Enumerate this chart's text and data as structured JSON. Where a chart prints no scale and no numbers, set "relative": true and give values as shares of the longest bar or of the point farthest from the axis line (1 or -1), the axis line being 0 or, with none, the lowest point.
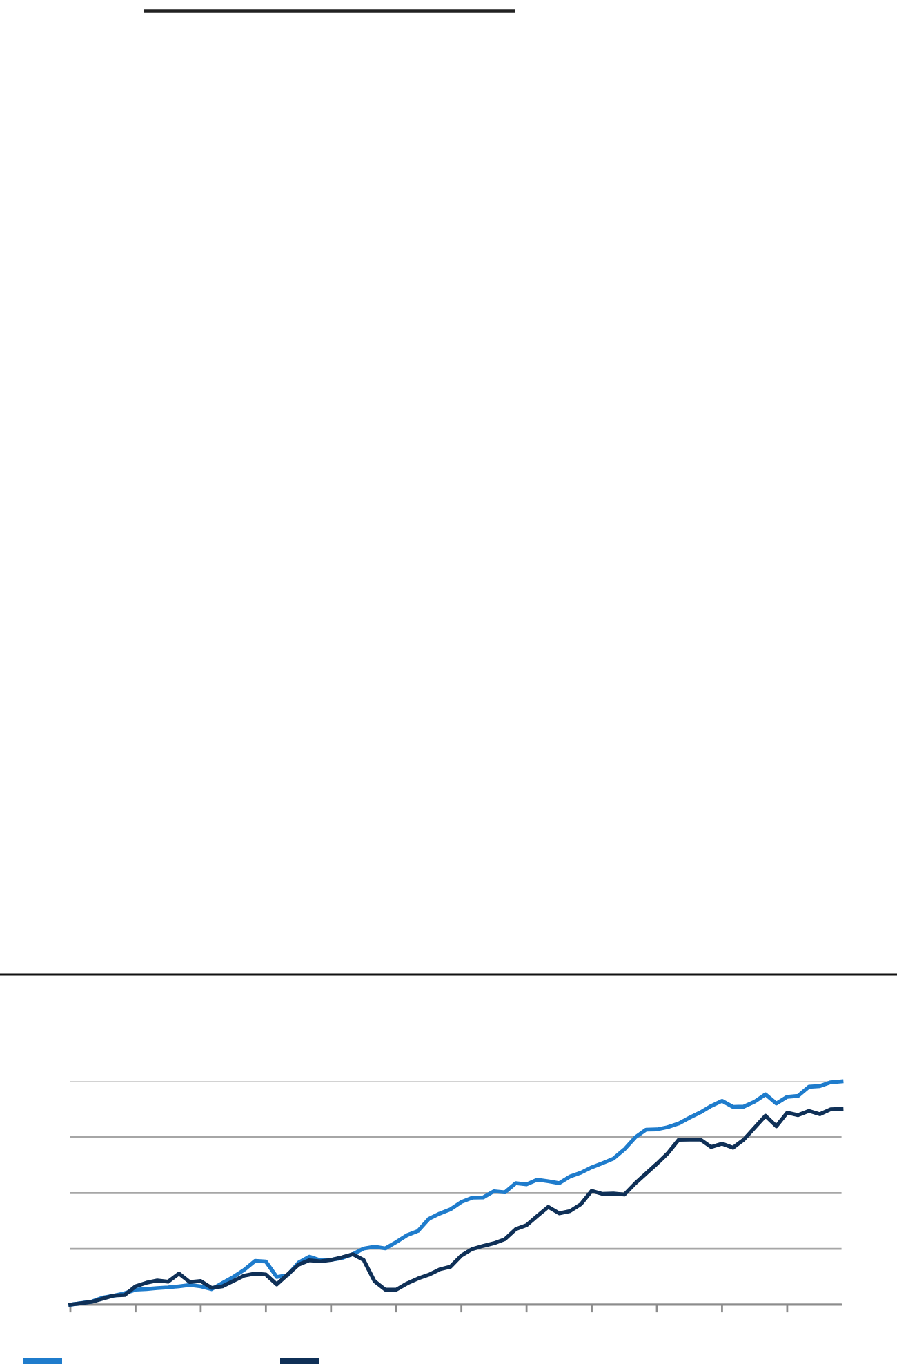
{
  "chart_data": {
    "type": "line",
    "relative": true,
    "grid": "y",
    "line_style": "solid",
    "categories": [
      null,
      null,
      null,
      null,
      null,
      null,
      null,
      null,
      null,
      null,
      null,
      null,
      null,
      null,
      null,
      null,
      null,
      null,
      null,
      null,
      null,
      null,
      null,
      null,
      null,
      null,
      null,
      null,
      null,
      null,
      null,
      null,
      null,
      null,
      null,
      null,
      null,
      null,
      null,
      null,
      null,
      null,
      null,
      null,
      null,
      null,
      null,
      null,
      null,
      null,
      null,
      null,
      null,
      null,
      null,
      null,
      null,
      null,
      null,
      null,
      null,
      null,
      null,
      null,
      null,
      null,
      null,
      null,
      null,
      null,
      null,
      null
    ],
    "series": [
      {
        "color": "#1f7ccc",
        "values": [
          0,
          0.007,
          0.014,
          0.032,
          0.04,
          0.051,
          0.067,
          0.07,
          0.074,
          0.077,
          0.082,
          0.088,
          0.082,
          0.069,
          0.097,
          0.124,
          0.156,
          0.196,
          0.193,
          0.124,
          0.132,
          0.188,
          0.215,
          0.199,
          0.201,
          0.208,
          0.226,
          0.251,
          0.26,
          0.252,
          0.28,
          0.311,
          0.33,
          0.384,
          0.408,
          0.427,
          0.46,
          0.479,
          0.48,
          0.508,
          0.503,
          0.544,
          0.539,
          0.56,
          0.553,
          0.544,
          0.574,
          0.591,
          0.615,
          0.634,
          0.654,
          0.695,
          0.749,
          0.784,
          0.785,
          0.795,
          0.811,
          0.837,
          0.861,
          0.89,
          0.913,
          0.886,
          0.887,
          0.909,
          0.942,
          0.901,
          0.931,
          0.935,
          0.976,
          0.979,
          0.996,
          1
        ]
      },
      {
        "color": "#0f3057",
        "values": [
          0,
          0.006,
          0.013,
          0.027,
          0.041,
          0.043,
          0.082,
          0.098,
          0.108,
          0.103,
          0.139,
          0.101,
          0.106,
          0.075,
          0.082,
          0.106,
          0.13,
          0.139,
          0.135,
          0.091,
          0.135,
          0.179,
          0.199,
          0.194,
          0.2,
          0.212,
          0.226,
          0.2,
          0.105,
          0.067,
          0.067,
          0.095,
          0.117,
          0.134,
          0.158,
          0.17,
          0.22,
          0.249,
          0.263,
          0.275,
          0.293,
          0.338,
          0.356,
          0.398,
          0.438,
          0.409,
          0.419,
          0.45,
          0.51,
          0.496,
          0.498,
          0.493,
          0.543,
          0.587,
          0.631,
          0.678,
          0.738,
          0.739,
          0.74,
          0.706,
          0.721,
          0.703,
          0.739,
          0.793,
          0.846,
          0.799,
          0.86,
          0.849,
          0.868,
          0.853,
          0.875,
          0.877
        ]
      }
    ]
  }
}
